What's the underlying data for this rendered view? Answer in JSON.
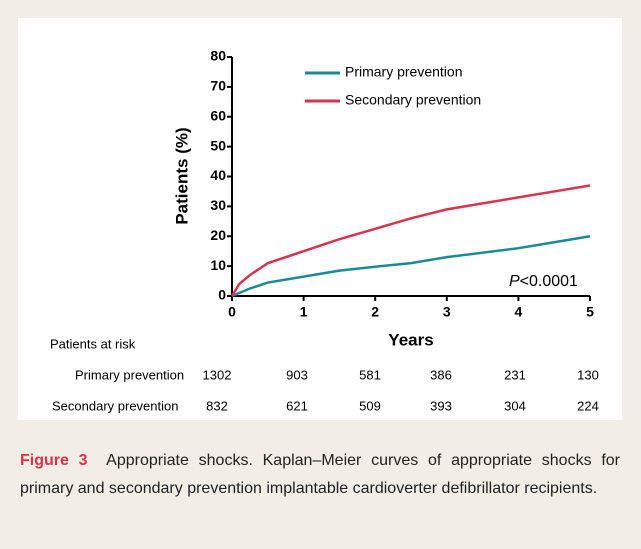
{
  "chart_data": {
    "type": "line",
    "ylabel": "Patients (%)",
    "xlabel": "Years",
    "xlim": [
      0,
      5
    ],
    "xticks": [
      0,
      1,
      2,
      3,
      4,
      5
    ],
    "ylim": [
      0,
      80
    ],
    "yticks": [
      0,
      10,
      20,
      30,
      40,
      50,
      60,
      70,
      80
    ],
    "legend": "top",
    "series": [
      {
        "name": "Primary prevention",
        "color": "#1b8a98",
        "x": [
          0,
          0.25,
          0.5,
          1,
          1.5,
          2,
          2.5,
          3,
          3.5,
          4,
          4.5,
          5
        ],
        "values": [
          0,
          2.5,
          4.5,
          6.5,
          8.5,
          9.8,
          11,
          13,
          14.5,
          16,
          18,
          20
        ]
      },
      {
        "name": "Secondary prevention",
        "color": "#d8334e",
        "x": [
          0,
          0.1,
          0.25,
          0.5,
          1,
          1.5,
          2,
          2.5,
          3,
          3.5,
          4,
          4.5,
          5
        ],
        "values": [
          0,
          4,
          7,
          11,
          15,
          19,
          22.5,
          26,
          29,
          31,
          33,
          35,
          37
        ]
      }
    ],
    "annotation": {
      "italic": "P",
      "text": "<0.0001"
    },
    "risk_table": {
      "title": "Patients at risk",
      "rows": [
        {
          "name": "Primary prevention",
          "values": [
            1302,
            903,
            581,
            386,
            231,
            130
          ]
        },
        {
          "name": "Secondary prevention",
          "values": [
            832,
            621,
            509,
            393,
            304,
            224
          ]
        }
      ]
    }
  },
  "caption": {
    "label": "Figure 3",
    "text": "Appropriate shocks. Kaplan–Meier curves of appropriate shocks for primary and secondary prevention implantable cardioverter defibrillator recipients."
  }
}
